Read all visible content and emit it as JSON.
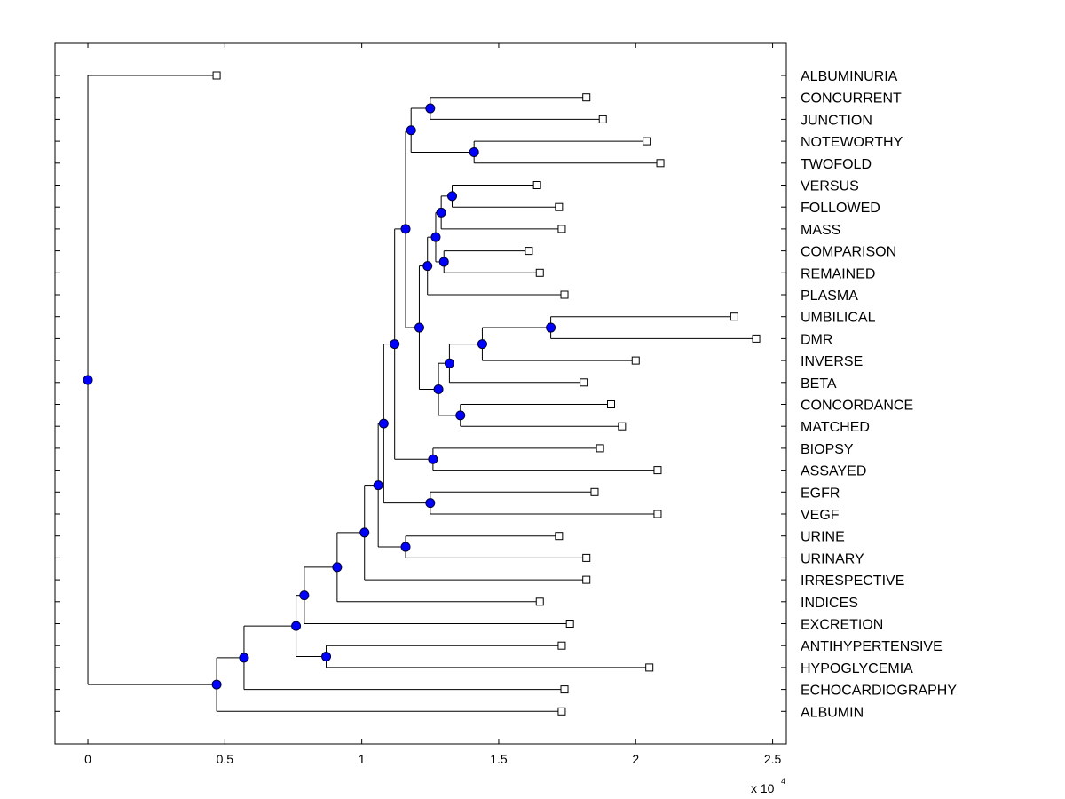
{
  "chart_data": {
    "type": "dendrogram",
    "orientation": "horizontal",
    "xlim": [
      -1200,
      25500
    ],
    "xticks": [
      0,
      5000,
      10000,
      15000,
      20000,
      25000
    ],
    "xtick_labels": [
      "0",
      "0.5",
      "1",
      "1.5",
      "2",
      "2.5"
    ],
    "x_multiplier_base": "x 10",
    "x_multiplier_exp": "4",
    "leaves": [
      {
        "label": "ALBUMINURIA",
        "x": 4700
      },
      {
        "label": "CONCURRENT",
        "x": 18200
      },
      {
        "label": "JUNCTION",
        "x": 18800
      },
      {
        "label": "NOTEWORTHY",
        "x": 20400
      },
      {
        "label": "TWOFOLD",
        "x": 20900
      },
      {
        "label": "VERSUS",
        "x": 16400
      },
      {
        "label": "FOLLOWED",
        "x": 17200
      },
      {
        "label": "MASS",
        "x": 17300
      },
      {
        "label": "COMPARISON",
        "x": 16100
      },
      {
        "label": "REMAINED",
        "x": 16500
      },
      {
        "label": "PLASMA",
        "x": 17400
      },
      {
        "label": "UMBILICAL",
        "x": 23600
      },
      {
        "label": "DMR",
        "x": 24400
      },
      {
        "label": "INVERSE",
        "x": 20000
      },
      {
        "label": "BETA",
        "x": 18100
      },
      {
        "label": "CONCORDANCE",
        "x": 19100
      },
      {
        "label": "MATCHED",
        "x": 19500
      },
      {
        "label": "BIOPSY",
        "x": 18700
      },
      {
        "label": "ASSAYED",
        "x": 20800
      },
      {
        "label": "EGFR",
        "x": 18500
      },
      {
        "label": "VEGF",
        "x": 20800
      },
      {
        "label": "URINE",
        "x": 17200
      },
      {
        "label": "URINARY",
        "x": 18200
      },
      {
        "label": "IRRESPECTIVE",
        "x": 18200
      },
      {
        "label": "INDICES",
        "x": 16500
      },
      {
        "label": "EXCRETION",
        "x": 17600
      },
      {
        "label": "ANTIHYPERTENSIVE",
        "x": 17300
      },
      {
        "label": "HYPOGLYCEMIA",
        "x": 20500
      },
      {
        "label": "ECHOCARDIOGRAPHY",
        "x": 17400
      },
      {
        "label": "ALBUMIN",
        "x": 17300
      }
    ],
    "nodes": [
      {
        "id": "n1",
        "x": 12500,
        "children": [
          "L1",
          "L2"
        ]
      },
      {
        "id": "n2",
        "x": 14100,
        "children": [
          "L3",
          "L4"
        ]
      },
      {
        "id": "n3",
        "x": 11800,
        "children": [
          "n1",
          "n2"
        ]
      },
      {
        "id": "n4",
        "x": 13300,
        "children": [
          "L5",
          "L6"
        ]
      },
      {
        "id": "n5",
        "x": 12900,
        "children": [
          "n4",
          "L7"
        ]
      },
      {
        "id": "n6",
        "x": 13000,
        "children": [
          "L8",
          "L9"
        ]
      },
      {
        "id": "n7",
        "x": 12700,
        "children": [
          "n5",
          "n6"
        ]
      },
      {
        "id": "n8",
        "x": 12400,
        "children": [
          "n7",
          "L10"
        ]
      },
      {
        "id": "n9",
        "x": 16900,
        "children": [
          "L11",
          "L12"
        ]
      },
      {
        "id": "n10",
        "x": 14400,
        "children": [
          "n9",
          "L13"
        ]
      },
      {
        "id": "n11",
        "x": 13200,
        "children": [
          "n10",
          "L14"
        ]
      },
      {
        "id": "n12",
        "x": 13600,
        "children": [
          "L15",
          "L16"
        ]
      },
      {
        "id": "n13",
        "x": 12800,
        "children": [
          "n11",
          "n12"
        ]
      },
      {
        "id": "n14",
        "x": 12100,
        "children": [
          "n8",
          "n13"
        ]
      },
      {
        "id": "n15",
        "x": 11600,
        "children": [
          "n3",
          "n14"
        ]
      },
      {
        "id": "n16",
        "x": 12600,
        "children": [
          "L17",
          "L18"
        ]
      },
      {
        "id": "n17",
        "x": 11200,
        "children": [
          "n15",
          "n16"
        ]
      },
      {
        "id": "n18",
        "x": 12500,
        "children": [
          "L19",
          "L20"
        ]
      },
      {
        "id": "n19",
        "x": 10800,
        "children": [
          "n17",
          "n18"
        ]
      },
      {
        "id": "n20",
        "x": 11600,
        "children": [
          "L21",
          "L22"
        ]
      },
      {
        "id": "n21",
        "x": 10600,
        "children": [
          "n19",
          "n20"
        ]
      },
      {
        "id": "n22",
        "x": 10100,
        "children": [
          "n21",
          "L23"
        ]
      },
      {
        "id": "n23",
        "x": 9100,
        "children": [
          "n22",
          "L24"
        ]
      },
      {
        "id": "n24",
        "x": 7900,
        "children": [
          "n23",
          "L25"
        ]
      },
      {
        "id": "n25",
        "x": 8700,
        "children": [
          "L26",
          "L27"
        ]
      },
      {
        "id": "n26",
        "x": 7600,
        "children": [
          "n24",
          "n25"
        ]
      },
      {
        "id": "n27",
        "x": 5700,
        "children": [
          "n26",
          "L28"
        ]
      },
      {
        "id": "n28",
        "x": 4700,
        "children": [
          "n27",
          "L29"
        ]
      },
      {
        "id": "n29",
        "x": 0,
        "children": [
          "L0",
          "n28"
        ]
      }
    ],
    "colors": {
      "node_fill": "#0000ff",
      "node_stroke": "#000033",
      "leaf_fill": "#ffffff",
      "line": "#000000"
    }
  }
}
